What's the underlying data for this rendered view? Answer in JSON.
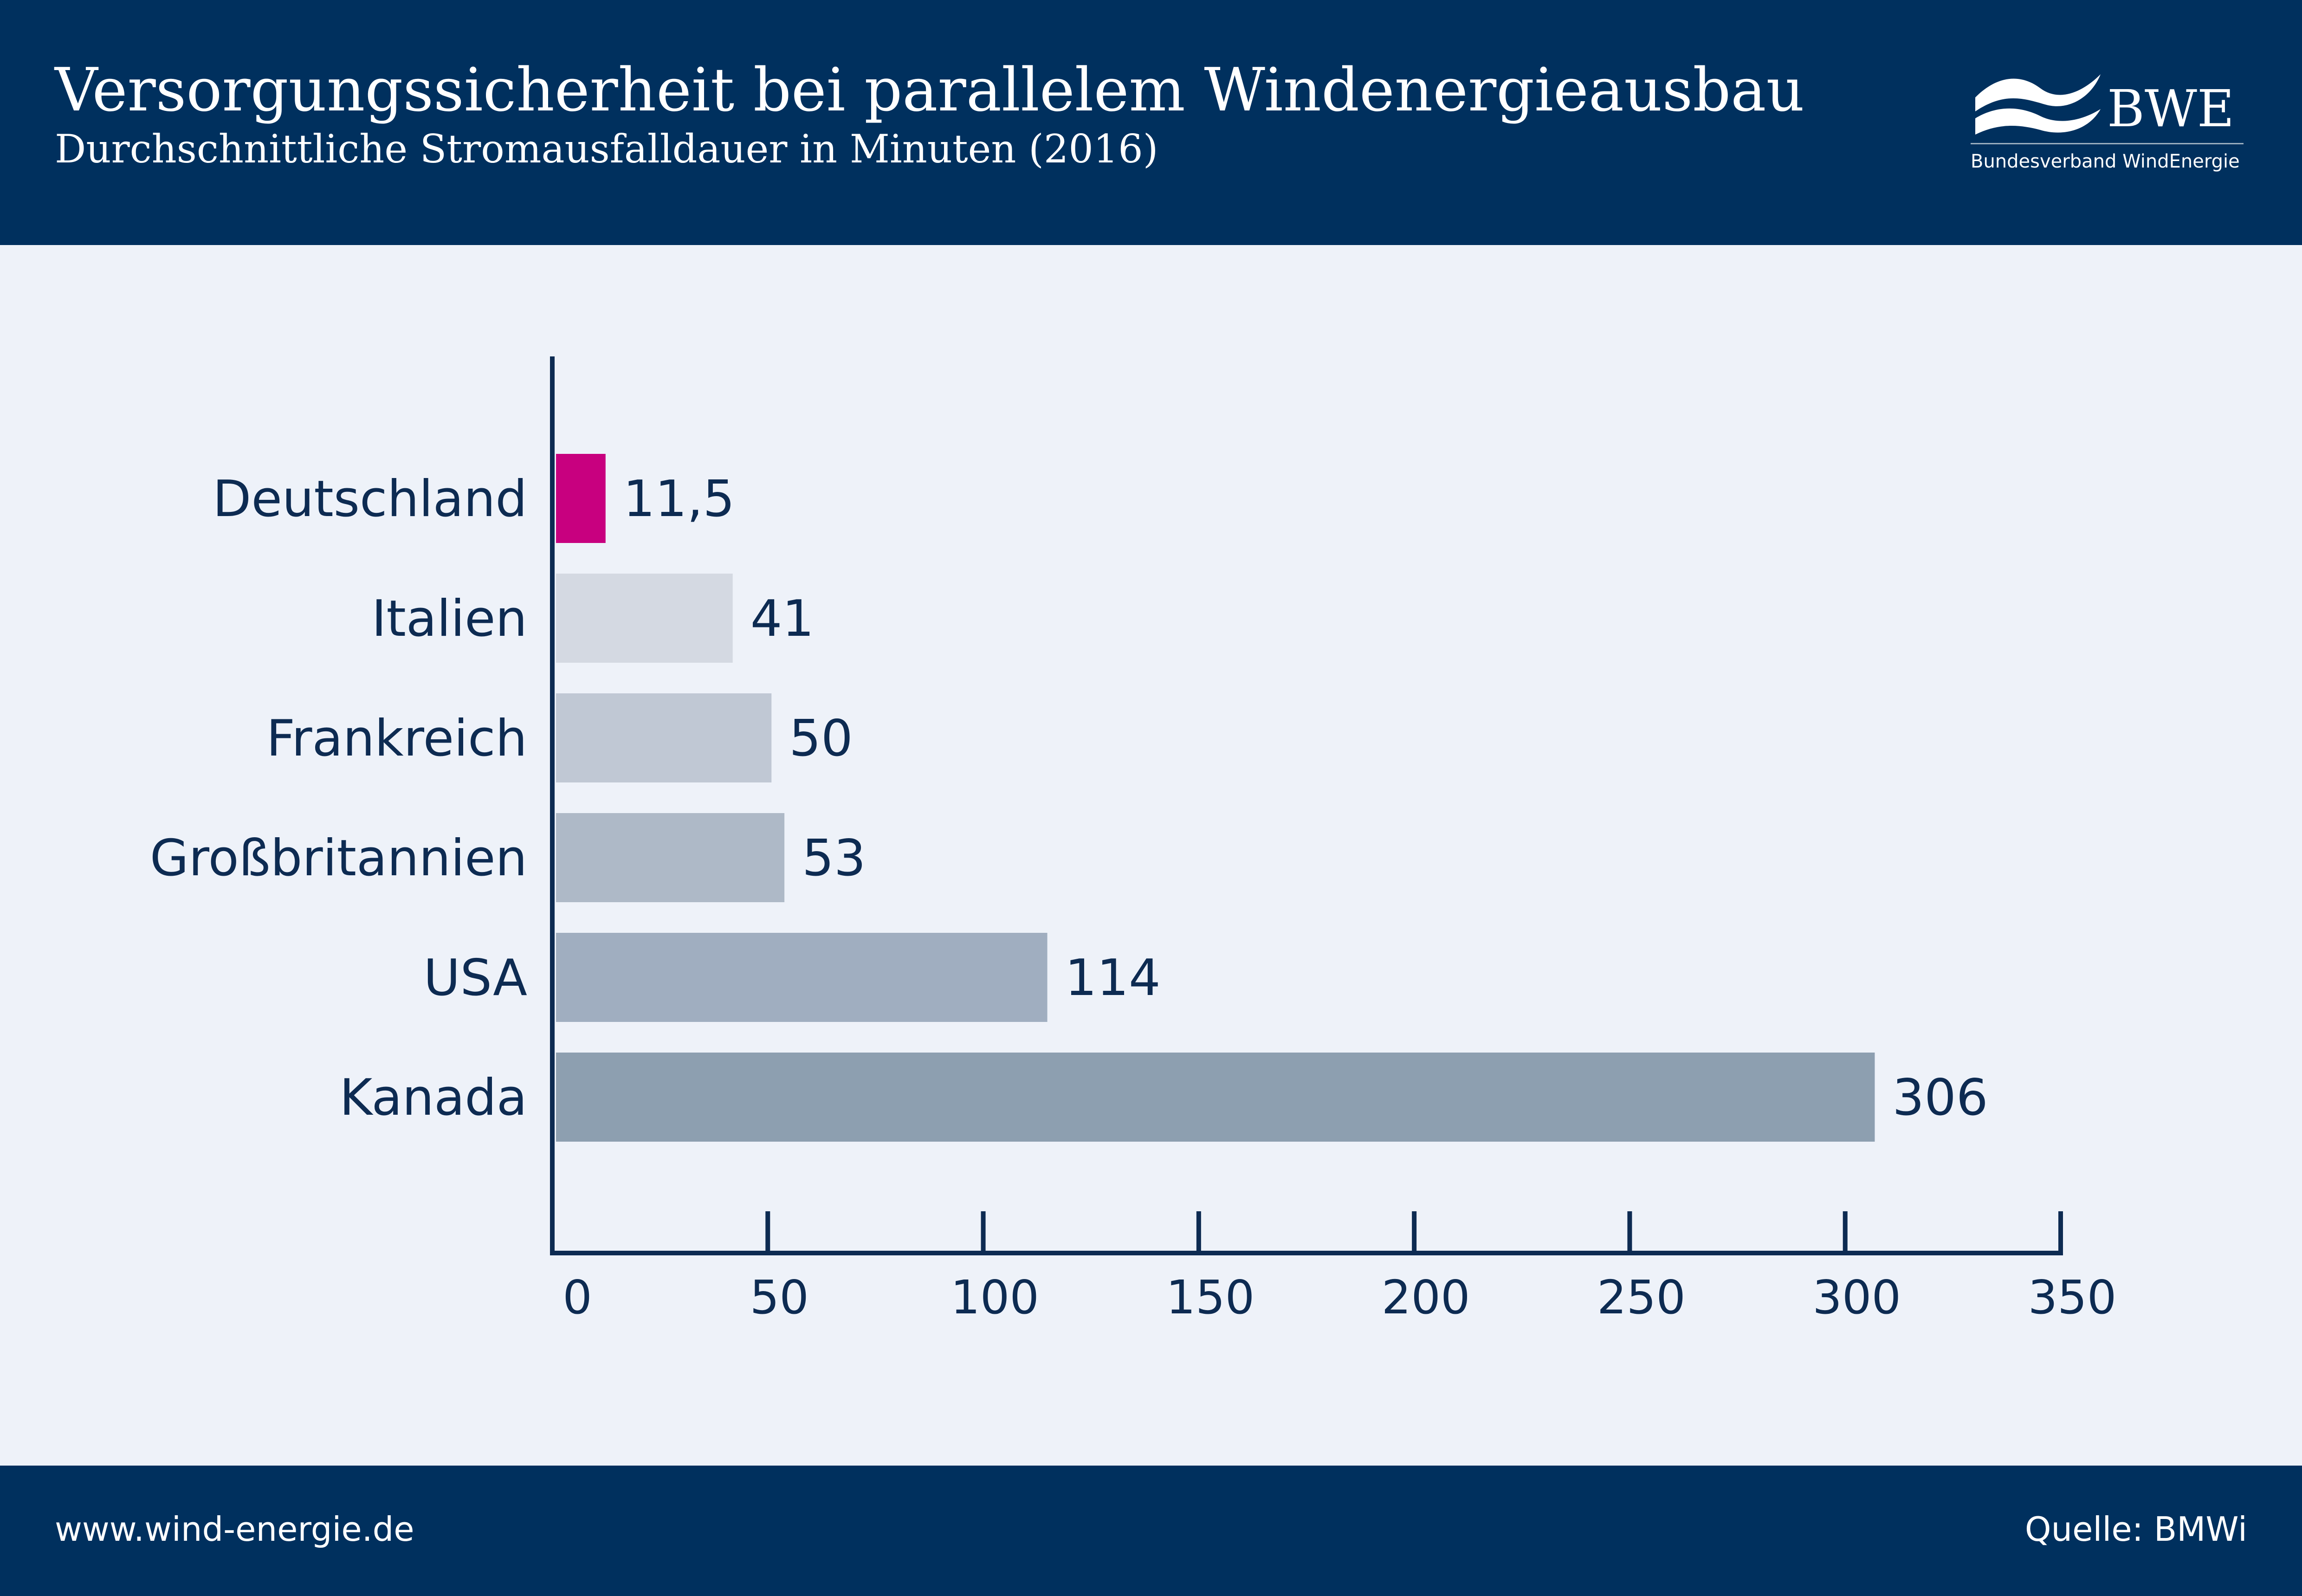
{
  "header": {
    "title": "Versorgungssicherheit bei parallelem Windenergieausbau",
    "subtitle": "Durchschnittliche Stromausfalldauer in Minuten (2016)"
  },
  "logo": {
    "name": "BWE",
    "org": "Bundesverband WindEnergie",
    "icon": "wind-wave-icon"
  },
  "chart_data": {
    "type": "bar",
    "orientation": "horizontal",
    "categories": [
      "Deutschland",
      "Italien",
      "Frankreich",
      "Großbritannien",
      "USA",
      "Kanada"
    ],
    "values": [
      11.5,
      41,
      50,
      53,
      114,
      306
    ],
    "value_labels": [
      "11,5",
      "41",
      "50",
      "53",
      "114",
      "306"
    ],
    "bar_colors": [
      "#c8007f",
      "#d4d9e2",
      "#c0c8d4",
      "#aeb9c7",
      "#a0aec0",
      "#8d9fb0"
    ],
    "xlim": [
      0,
      350
    ],
    "xticks": [
      0,
      50,
      100,
      150,
      200,
      250,
      300,
      350
    ],
    "xtick_labels": [
      "0",
      "50",
      "100",
      "150",
      "200",
      "250",
      "300",
      "350"
    ],
    "grid": false,
    "legend": "none"
  },
  "footer": {
    "url": "www.wind-energie.de",
    "source": "Quelle: BMWi"
  },
  "colors": {
    "navy": "#00305e",
    "background": "#eef2f9",
    "highlight": "#c8007f",
    "text": "#0d2b52"
  }
}
